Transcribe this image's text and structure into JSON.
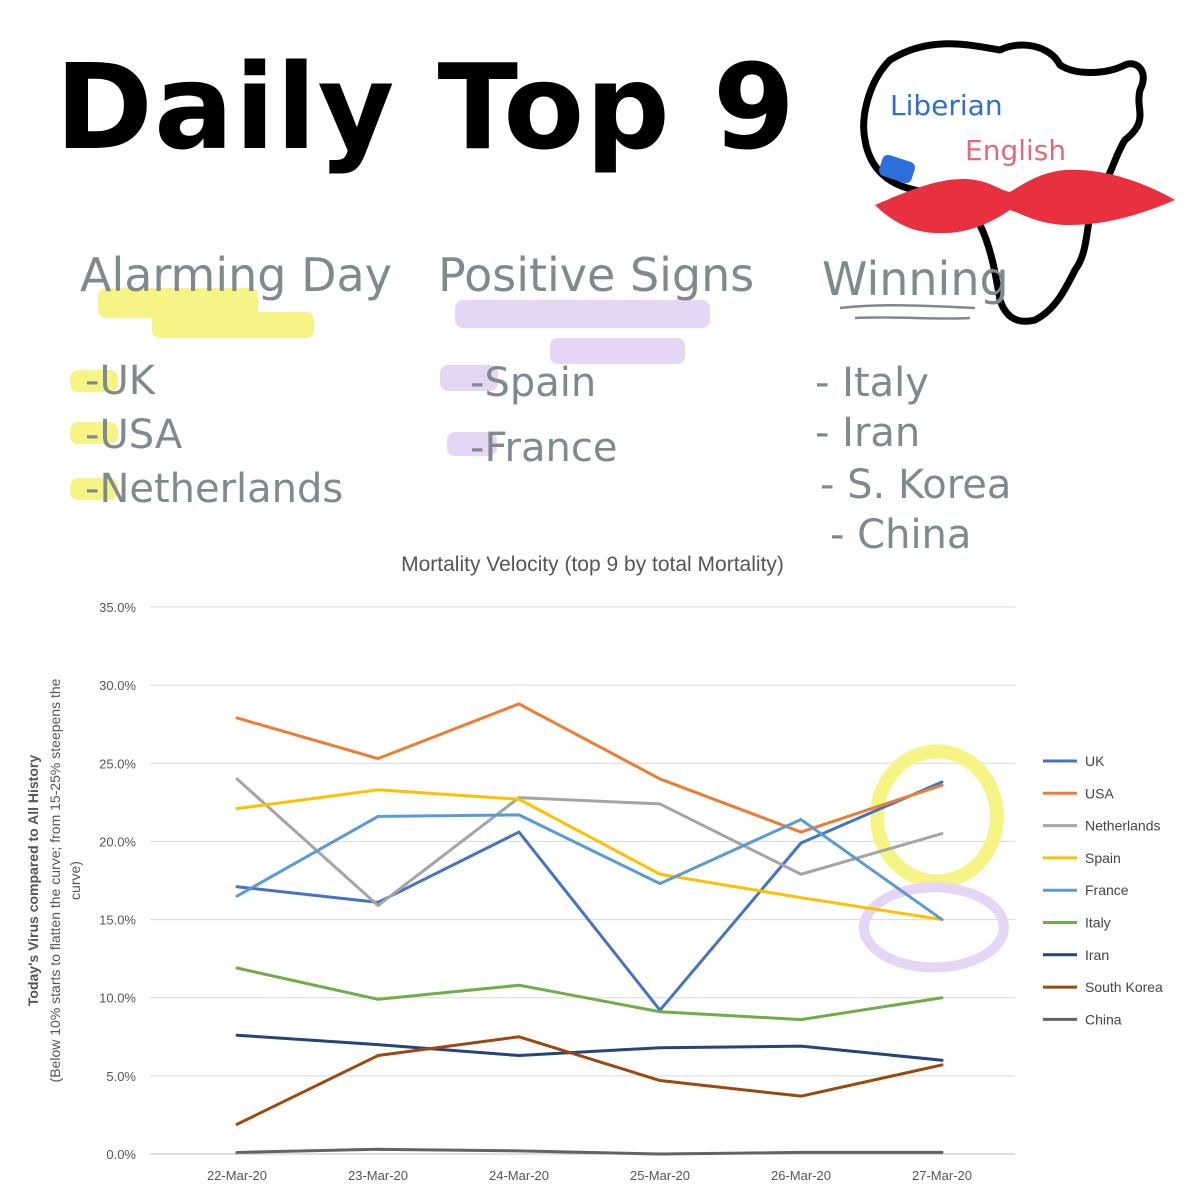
{
  "header": {
    "title": "Daily Top 9",
    "logo": {
      "line1": "Liberian",
      "line2": "English"
    }
  },
  "columns": [
    {
      "heading": "Alarming Day",
      "items": [
        "UK",
        "USA",
        "Netherlands"
      ],
      "highlight_color": "#f7f486"
    },
    {
      "heading": "Positive Signs",
      "items": [
        "Spain",
        "France"
      ],
      "highlight_color": "#e6d6f6"
    },
    {
      "heading": "Winning",
      "items": [
        "Italy",
        "Iran",
        "S. Korea",
        "China"
      ],
      "highlight_color": ""
    }
  ],
  "chart_data": {
    "type": "line",
    "title": "Mortality Velocity (top 9 by total Mortality)",
    "ylabel_line1": "Today's Virus compared to All History",
    "ylabel_line2": "(Below 10% starts to flatten the curve; from 15-25% steepens the",
    "ylabel_line3": "curve)",
    "xlabel": "",
    "categories": [
      "22-Mar-20",
      "23-Mar-20",
      "24-Mar-20",
      "25-Mar-20",
      "26-Mar-20",
      "27-Mar-20"
    ],
    "ylim": [
      0,
      35
    ],
    "yticks": [
      "0.0%",
      "5.0%",
      "10.0%",
      "15.0%",
      "20.0%",
      "25.0%",
      "30.0%",
      "35.0%"
    ],
    "grid": true,
    "legend_position": "right",
    "series": [
      {
        "name": "UK",
        "color": "#4472c4",
        "values": [
          17.1,
          16.1,
          20.6,
          9.2,
          19.9,
          23.8
        ]
      },
      {
        "name": "USA",
        "color": "#ed7d31",
        "values": [
          27.9,
          25.3,
          28.8,
          24.0,
          20.6,
          23.6
        ]
      },
      {
        "name": "Netherlands",
        "color": "#a5a5a5",
        "values": [
          24.0,
          15.9,
          22.8,
          22.4,
          17.9,
          20.5
        ]
      },
      {
        "name": "Spain",
        "color": "#ffc000",
        "values": [
          22.1,
          23.3,
          22.7,
          17.9,
          16.4,
          15.0
        ]
      },
      {
        "name": "France",
        "color": "#5b9bd5",
        "values": [
          16.5,
          21.6,
          21.7,
          17.3,
          21.4,
          15.0
        ]
      },
      {
        "name": "Italy",
        "color": "#70ad47",
        "values": [
          11.9,
          9.9,
          10.8,
          9.1,
          8.6,
          10.0
        ]
      },
      {
        "name": "Iran",
        "color": "#264478",
        "values": [
          7.6,
          7.0,
          6.3,
          6.8,
          6.9,
          6.0
        ]
      },
      {
        "name": "South Korea",
        "color": "#9e480e",
        "values": [
          1.9,
          6.3,
          7.5,
          4.7,
          3.7,
          5.7
        ]
      },
      {
        "name": "China",
        "color": "#636363",
        "values": [
          0.1,
          0.3,
          0.2,
          0.0,
          0.1,
          0.1
        ]
      }
    ],
    "annotations": [
      {
        "shape": "circle",
        "color": "#f7f486",
        "around_series": [
          "UK",
          "USA",
          "Netherlands"
        ],
        "at": "27-Mar-20"
      },
      {
        "shape": "circle",
        "color": "#e6d6f6",
        "around_series": [
          "Spain",
          "France"
        ],
        "at": "27-Mar-20"
      }
    ]
  }
}
